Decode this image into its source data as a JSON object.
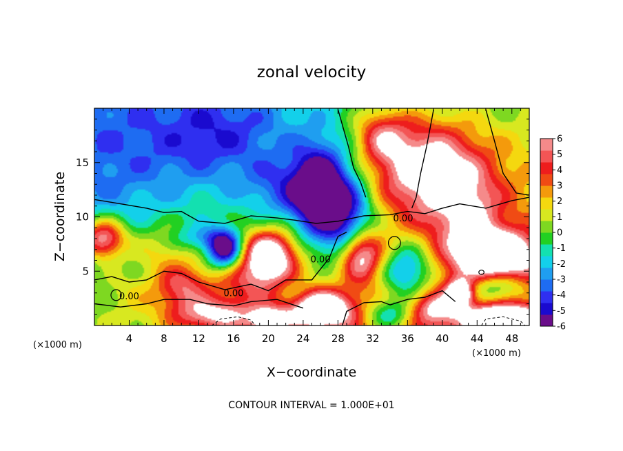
{
  "chart_data": {
    "type": "heatmap",
    "title": "zonal velocity",
    "xlabel": "X−coordinate",
    "ylabel": "Z−coordinate",
    "x_unit": "(×1000 m)",
    "y_unit": "(×1000 m)",
    "xlim": [
      0,
      50
    ],
    "ylim": [
      0,
      20
    ],
    "x_ticks": [
      4,
      8,
      12,
      16,
      20,
      24,
      28,
      32,
      36,
      40,
      44,
      48
    ],
    "y_ticks": [
      5,
      10,
      15
    ],
    "colorbar": {
      "ticks": [
        6,
        5,
        4,
        3,
        2,
        1,
        0,
        -1,
        -2,
        -3,
        -4,
        -5,
        -6
      ],
      "range": [
        -6,
        6
      ],
      "colors": [
        "#6a0d8a",
        "#1a0acf",
        "#2f2ff0",
        "#1e6cf2",
        "#1f9ef0",
        "#13d0ea",
        "#13e0b0",
        "#22d022",
        "#7ed821",
        "#d8e820",
        "#f4d80f",
        "#f49a0c",
        "#f04b14",
        "#ee1d1d",
        "#f35555",
        "#f58a8a"
      ]
    },
    "contour_labels": [
      {
        "text": "0.00",
        "x": 4.0,
        "z": 2.4
      },
      {
        "text": "0.00",
        "x": 16.0,
        "z": 2.7
      },
      {
        "text": "0.00",
        "x": 26.0,
        "z": 5.8
      },
      {
        "text": "0.00",
        "x": 35.5,
        "z": 9.6
      }
    ],
    "footer": "CONTOUR INTERVAL = 1.000E+01",
    "field_blobs": [
      {
        "x": 3,
        "z": 14,
        "rx": 12,
        "rz": 6,
        "v": -1.5
      },
      {
        "x": 15,
        "z": 17.5,
        "rx": 8,
        "rz": 4,
        "v": -2.5
      },
      {
        "x": 22,
        "z": 12.5,
        "rx": 5,
        "rz": 3,
        "v": -3
      },
      {
        "x": 26,
        "z": 12,
        "rx": 3.2,
        "rz": 4.5,
        "v": -7
      },
      {
        "x": 29.5,
        "z": 9,
        "rx": 3,
        "rz": 4.5,
        "v": -5.5
      },
      {
        "x": 38,
        "z": 14.5,
        "rx": 6,
        "rz": 4.5,
        "v": 7
      },
      {
        "x": 33,
        "z": 17.5,
        "rx": 3,
        "rz": 2.5,
        "v": 4
      },
      {
        "x": 43,
        "z": 9.5,
        "rx": 4,
        "rz": 5,
        "v": 4
      },
      {
        "x": 47,
        "z": 15,
        "rx": 5,
        "rz": 5,
        "v": 0.5
      },
      {
        "x": 1,
        "z": 8,
        "rx": 2.5,
        "rz": 1.8,
        "v": 7
      },
      {
        "x": 8,
        "z": 7,
        "rx": 4,
        "rz": 2.5,
        "v": 2
      },
      {
        "x": 10,
        "z": 3.5,
        "rx": 3,
        "rz": 2,
        "v": 4
      },
      {
        "x": 4,
        "z": 3,
        "rx": 3.5,
        "rz": 2,
        "v": 1
      },
      {
        "x": 15,
        "z": 7,
        "rx": 2,
        "rz": 1.8,
        "v": -7
      },
      {
        "x": 20,
        "z": 6.5,
        "rx": 3,
        "rz": 2.2,
        "v": 8
      },
      {
        "x": 18,
        "z": 4,
        "rx": 5,
        "rz": 2,
        "v": 3
      },
      {
        "x": 14,
        "z": 1,
        "rx": 5,
        "rz": 1.5,
        "v": 5
      },
      {
        "x": 26,
        "z": 1.5,
        "rx": 4,
        "rz": 1.8,
        "v": 8
      },
      {
        "x": 30.5,
        "z": 6.5,
        "rx": 2.5,
        "rz": 2.5,
        "v": 8
      },
      {
        "x": 36,
        "z": 5,
        "rx": 3,
        "rz": 2.5,
        "v": -5
      },
      {
        "x": 34,
        "z": 1,
        "rx": 3,
        "rz": 1.5,
        "v": -4
      },
      {
        "x": 39,
        "z": 1.5,
        "rx": 3,
        "rz": 1.5,
        "v": 4
      },
      {
        "x": 46.5,
        "z": 6.5,
        "rx": 4,
        "rz": 2,
        "v": 8
      },
      {
        "x": 46,
        "z": 3.5,
        "rx": 3.5,
        "rz": 1.5,
        "v": -4
      },
      {
        "x": 47,
        "z": 0.6,
        "rx": 4,
        "rz": 1.2,
        "v": 8
      },
      {
        "x": 42,
        "z": 3,
        "rx": 1.5,
        "rz": 1.2,
        "v": 7
      },
      {
        "x": 23,
        "z": 3,
        "rx": 2.5,
        "rz": 1.5,
        "v": -2
      },
      {
        "x": 12,
        "z": 8,
        "rx": 3,
        "rz": 1.2,
        "v": -2.5
      },
      {
        "x": 20,
        "z": 0.5,
        "rx": 2,
        "rz": 1,
        "v": 6
      }
    ],
    "zero_contours": [
      [
        [
          0,
          11.6
        ],
        [
          3,
          11.2
        ],
        [
          6,
          10.8
        ],
        [
          8,
          10.4
        ],
        [
          10,
          10.5
        ],
        [
          12,
          9.6
        ],
        [
          15,
          9.4
        ],
        [
          18,
          10.1
        ],
        [
          21,
          9.9
        ],
        [
          23,
          9.7
        ],
        [
          25.5,
          9.4
        ],
        [
          28,
          9.6
        ],
        [
          31,
          10.1
        ],
        [
          34,
          10.2
        ],
        [
          36,
          10.5
        ],
        [
          38,
          10.3
        ],
        [
          40,
          10.8
        ],
        [
          42,
          11.2
        ],
        [
          45,
          10.8
        ],
        [
          48,
          11.5
        ],
        [
          50,
          11.8
        ]
      ],
      [
        [
          0,
          4.2
        ],
        [
          2,
          4.5
        ],
        [
          4,
          4.0
        ],
        [
          6,
          4.2
        ],
        [
          8,
          5.0
        ],
        [
          10,
          4.8
        ],
        [
          12,
          4.0
        ],
        [
          15,
          3.3
        ],
        [
          18,
          3.8
        ],
        [
          20,
          3.2
        ],
        [
          22,
          4.2
        ],
        [
          25,
          4.2
        ],
        [
          27,
          6.2
        ],
        [
          28,
          8.2
        ],
        [
          29,
          8.6
        ]
      ],
      [
        [
          0,
          2.0
        ],
        [
          3,
          1.7
        ],
        [
          6,
          2.0
        ],
        [
          8,
          2.4
        ],
        [
          11,
          2.4
        ],
        [
          13,
          2.0
        ],
        [
          16,
          1.8
        ],
        [
          18,
          2.2
        ],
        [
          21,
          2.4
        ],
        [
          24,
          1.6
        ]
      ],
      [
        [
          28.5,
          0
        ],
        [
          29,
          1.3
        ],
        [
          31,
          2.1
        ],
        [
          33,
          2.2
        ],
        [
          34,
          1.9
        ],
        [
          36,
          2.4
        ],
        [
          38,
          2.6
        ],
        [
          40,
          3.2
        ],
        [
          41.5,
          2.2
        ]
      ],
      [
        [
          39,
          19.9
        ],
        [
          38.2,
          16.5
        ],
        [
          37.5,
          14
        ],
        [
          37,
          11.8
        ],
        [
          36.5,
          10.8
        ]
      ],
      [
        [
          28,
          19.9
        ],
        [
          29.2,
          16.5
        ],
        [
          29.8,
          14.5
        ],
        [
          30.6,
          13.2
        ],
        [
          31.2,
          11.8
        ]
      ],
      [
        [
          45,
          19.9
        ],
        [
          46,
          17
        ],
        [
          47,
          14
        ],
        [
          48.5,
          12.2
        ],
        [
          50,
          12
        ]
      ]
    ],
    "dashed_contours": [
      [
        [
          13.5,
          0
        ],
        [
          14.5,
          0.6
        ],
        [
          16.5,
          0.8
        ],
        [
          18,
          0.5
        ],
        [
          18.5,
          0
        ]
      ],
      [
        [
          44.5,
          0
        ],
        [
          45,
          0.6
        ],
        [
          47,
          0.8
        ],
        [
          49,
          0.4
        ],
        [
          49.5,
          0
        ]
      ]
    ],
    "closed_contours": [
      {
        "x": 34.5,
        "z": 7.6,
        "rx": 0.7,
        "rz": 0.6
      },
      {
        "x": 44.5,
        "z": 4.9,
        "rx": 0.3,
        "rz": 0.2
      },
      {
        "x": 2.5,
        "z": 2.8,
        "rx": 0.6,
        "rz": 0.5
      }
    ]
  }
}
